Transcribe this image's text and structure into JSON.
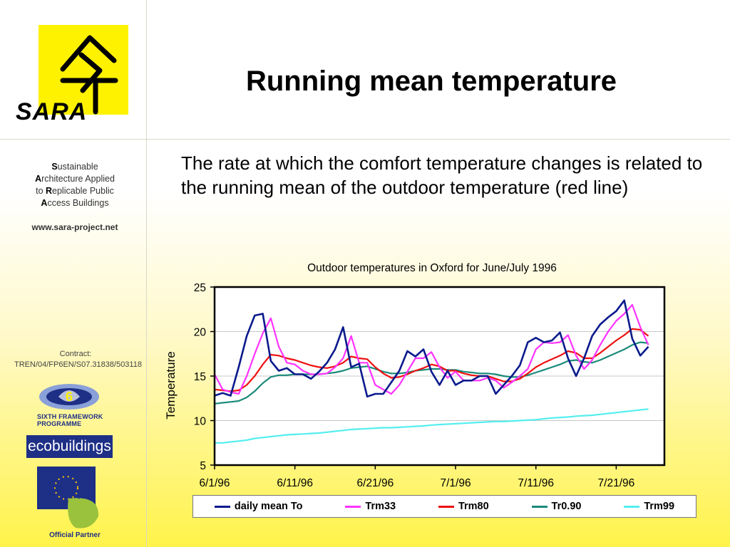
{
  "slide": {
    "title": "Running mean temperature",
    "intro": "The rate at which the comfort temperature changes is related to the running mean of the outdoor temperature (red line)"
  },
  "sidebar": {
    "logo_text": "SARA",
    "acronym": [
      {
        "initial": "S",
        "rest": "ustainable"
      },
      {
        "initial": "A",
        "rest": "rchitecture Applied"
      },
      {
        "prefix": "to ",
        "initial": "R",
        "rest": "eplicable Public"
      },
      {
        "initial": "A",
        "rest": "ccess Buildings"
      }
    ],
    "website": "www.sara-project.net",
    "contract": "Contract: TREN/04/FP6EN/S07.31838/503118",
    "sixth_framework": "SIXTH FRAMEWORK",
    "programme": "PROGRAMME",
    "ecobuildings": "ecobuildings",
    "official_partner": "Official Partner"
  },
  "colors": {
    "logo_yellow": "#fff200",
    "daily": "#0a1a8c",
    "trm33": "#ff33ff",
    "trm80": "#ee1111",
    "tr090": "#1a8a7a",
    "trm99": "#55eef0"
  },
  "chart_data": {
    "type": "line",
    "title": "Outdoor temperatures in Oxford for June/July 1996",
    "xlabel": "",
    "ylabel": "Temperature",
    "ylim": [
      5,
      25
    ],
    "yticks": [
      5,
      10,
      15,
      20,
      25
    ],
    "xlim": [
      1,
      57
    ],
    "xtick_positions": [
      1,
      11,
      21,
      31,
      41,
      51
    ],
    "xtick_labels": [
      "6/1/96",
      "6/11/96",
      "6/21/96",
      "7/1/96",
      "7/11/96",
      "7/21/96"
    ],
    "grid": "horizontal",
    "legend_position": "bottom",
    "series": [
      {
        "name": "daily mean To",
        "color_key": "daily",
        "values": [
          12.8,
          13.1,
          12.8,
          16.0,
          19.5,
          21.8,
          22.0,
          16.7,
          15.6,
          15.9,
          15.2,
          15.2,
          14.7,
          15.5,
          16.5,
          18.0,
          20.5,
          16.0,
          16.4,
          12.7,
          13.0,
          13.0,
          14.3,
          15.6,
          17.8,
          17.2,
          18.0,
          15.5,
          14.0,
          15.6,
          14.0,
          14.5,
          14.5,
          15.0,
          15.0,
          13.0,
          14.0,
          15.0,
          16.2,
          18.8,
          19.3,
          18.8,
          19.0,
          19.9,
          17.0,
          15.0,
          17.0,
          19.5,
          20.8,
          21.6,
          22.3,
          23.5,
          19.2,
          17.3,
          18.3
        ]
      },
      {
        "name": "Trm33",
        "color_key": "trm33",
        "values": [
          15.2,
          13.5,
          13.2,
          13.0,
          15.0,
          17.5,
          19.8,
          21.5,
          18.3,
          16.5,
          16.3,
          15.6,
          15.2,
          15.2,
          15.3,
          16.0,
          17.0,
          19.5,
          16.5,
          16.5,
          14.0,
          13.5,
          13.0,
          14.0,
          15.5,
          17.0,
          17.0,
          17.7,
          16.0,
          14.8,
          15.5,
          14.5,
          14.5,
          14.5,
          14.8,
          14.5,
          13.7,
          14.3,
          15.0,
          15.8,
          18.0,
          18.8,
          18.7,
          18.8,
          19.6,
          17.3,
          15.8,
          16.8,
          18.5,
          20.0,
          21.2,
          22.0,
          23.0,
          20.5,
          18.5
        ]
      },
      {
        "name": "Trm80",
        "color_key": "trm80",
        "values": [
          13.5,
          13.4,
          13.3,
          13.4,
          14.0,
          15.0,
          16.3,
          17.4,
          17.3,
          17.0,
          16.8,
          16.5,
          16.2,
          16.0,
          15.9,
          16.1,
          16.5,
          17.2,
          17.0,
          16.9,
          16.0,
          15.3,
          14.8,
          14.9,
          15.2,
          15.6,
          15.9,
          16.3,
          16.1,
          15.6,
          15.6,
          15.3,
          15.1,
          15.0,
          15.0,
          14.7,
          14.4,
          14.4,
          14.7,
          15.3,
          16.0,
          16.5,
          16.9,
          17.3,
          17.8,
          17.6,
          17.0,
          17.0,
          17.6,
          18.3,
          19.0,
          19.6,
          20.3,
          20.2,
          19.5
        ]
      },
      {
        "name": "Tr0.90",
        "color_key": "tr090",
        "values": [
          11.9,
          12.0,
          12.1,
          12.2,
          12.6,
          13.3,
          14.2,
          14.9,
          15.1,
          15.1,
          15.2,
          15.2,
          15.2,
          15.2,
          15.3,
          15.4,
          15.6,
          15.9,
          16.0,
          16.1,
          15.8,
          15.5,
          15.3,
          15.3,
          15.4,
          15.6,
          15.7,
          15.8,
          15.8,
          15.7,
          15.7,
          15.5,
          15.4,
          15.3,
          15.3,
          15.2,
          15.0,
          14.9,
          14.9,
          15.1,
          15.4,
          15.7,
          16.0,
          16.3,
          16.7,
          16.8,
          16.6,
          16.5,
          16.8,
          17.2,
          17.6,
          18.0,
          18.5,
          18.8,
          18.7
        ]
      },
      {
        "name": "Trm99",
        "color_key": "trm99",
        "values": [
          7.5,
          7.5,
          7.6,
          7.7,
          7.8,
          8.0,
          8.1,
          8.2,
          8.3,
          8.4,
          8.45,
          8.5,
          8.55,
          8.6,
          8.7,
          8.8,
          8.9,
          9.0,
          9.05,
          9.1,
          9.15,
          9.2,
          9.2,
          9.25,
          9.3,
          9.35,
          9.4,
          9.5,
          9.55,
          9.6,
          9.65,
          9.7,
          9.75,
          9.8,
          9.85,
          9.9,
          9.9,
          9.95,
          10.0,
          10.05,
          10.1,
          10.2,
          10.3,
          10.35,
          10.4,
          10.5,
          10.55,
          10.6,
          10.7,
          10.8,
          10.9,
          11.0,
          11.1,
          11.2,
          11.3
        ]
      }
    ]
  }
}
